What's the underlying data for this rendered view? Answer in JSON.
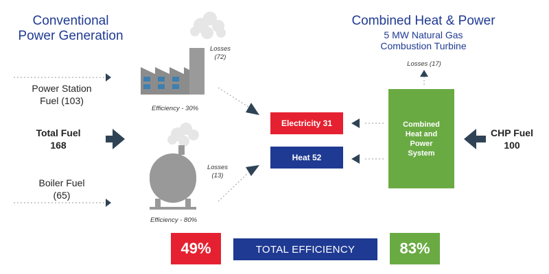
{
  "colors": {
    "heading": "#1f3a93",
    "electricity": "#e52131",
    "heat": "#1f3a93",
    "chp": "#6aaa43",
    "arrow": "#2f4356",
    "plant": "#8c8c8c"
  },
  "icons": {
    "power_station": "factory-icon",
    "boiler": "boiler-tank-icon",
    "smoke": "cloud-icon"
  },
  "conventional": {
    "title_line1": "Conventional",
    "title_line2": "Power Generation",
    "power_station_fuel_line1": "Power Station",
    "power_station_fuel_line2": "Fuel (103)",
    "total_fuel_line1": "Total Fuel",
    "total_fuel_line2": "168",
    "boiler_fuel_line1": "Boiler Fuel",
    "boiler_fuel_line2": "(65)",
    "power_losses_line1": "Losses",
    "power_losses_line2": "(72)",
    "power_efficiency": "Efficiency - 30%",
    "boiler_losses_line1": "Losses",
    "boiler_losses_line2": "(13)",
    "boiler_efficiency": "Efficiency - 80%"
  },
  "outputs": {
    "electricity": "Electricity 31",
    "heat": "Heat 52"
  },
  "chp": {
    "title": "Combined Heat & Power",
    "subtitle_line1": "5 MW Natural Gas",
    "subtitle_line2": "Combustion Turbine",
    "losses": "Losses (17)",
    "system_line1": "Combined",
    "system_line2": "Heat and",
    "system_line3": "Power",
    "system_line4": "System",
    "fuel_line1": "CHP Fuel",
    "fuel_line2": "100"
  },
  "totals": {
    "conventional_efficiency": "49%",
    "label": "TOTAL EFFICIENCY",
    "chp_efficiency": "83%"
  }
}
